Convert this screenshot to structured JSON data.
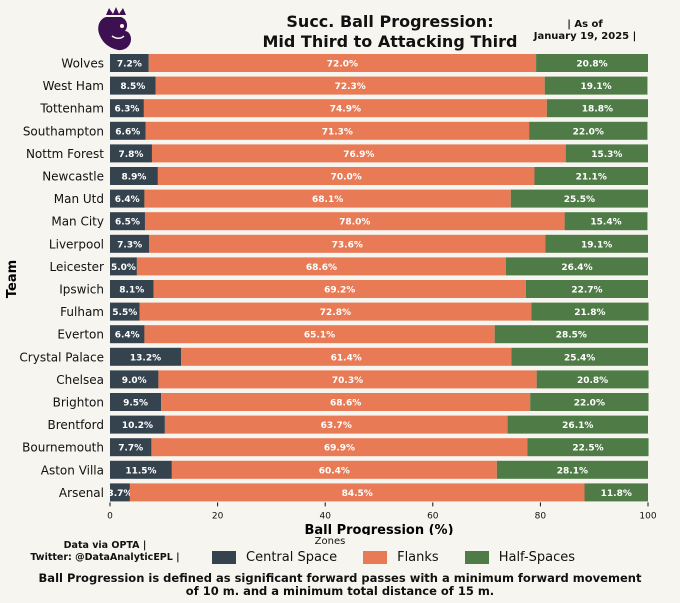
{
  "header": {
    "title_line1": "Succ. Ball Progression:",
    "title_line2": "Mid Third to Attacking Third",
    "asof_line1": "| As of",
    "asof_line2": "January 19, 2025 |"
  },
  "footer": {
    "source_line1": "Data via OPTA |",
    "source_line2": "Twitter: @DataAnalyticEPL |",
    "note_line1": "Ball Progression is defined as significant forward passes with a minimum forward movement",
    "note_line2": "of 10 m. and a minimum total distance of 15 m."
  },
  "legend": {
    "title": "Zones",
    "items": [
      "Central Space",
      "Flanks",
      "Half-Spaces"
    ]
  },
  "colors": {
    "central": "#35434f",
    "flanks": "#e87a55",
    "half": "#4f7b46",
    "background": "#f7f5ef",
    "logo": "#3d1052"
  },
  "chart_data": {
    "type": "bar",
    "orientation": "horizontal",
    "stacked": true,
    "xlabel": "Ball Progression (%)",
    "ylabel": "Team",
    "xlim": [
      0,
      100
    ],
    "xticks": [
      0,
      20,
      40,
      60,
      80,
      100
    ],
    "categories": [
      "Wolves",
      "West Ham",
      "Tottenham",
      "Southampton",
      "Nottm Forest",
      "Newcastle",
      "Man Utd",
      "Man City",
      "Liverpool",
      "Leicester",
      "Ipswich",
      "Fulham",
      "Everton",
      "Crystal Palace",
      "Chelsea",
      "Brighton",
      "Brentford",
      "Bournemouth",
      "Aston Villa",
      "Arsenal"
    ],
    "series": [
      {
        "name": "Central Space",
        "values": [
          7.2,
          8.5,
          6.3,
          6.6,
          7.8,
          8.9,
          6.4,
          6.5,
          7.3,
          5.0,
          8.1,
          5.5,
          6.4,
          13.2,
          9.0,
          9.5,
          10.2,
          7.7,
          11.5,
          3.7
        ],
        "labels": [
          "7.2%",
          "8.5%",
          "6.3%",
          "6.6%",
          "7.8%",
          "8.9%",
          "6.4%",
          "6.5%",
          "7.3%",
          "5.0%",
          "8.1%",
          "5.5%",
          "6.4%",
          "13.2%",
          "9.0%",
          "9.5%",
          "10.2%",
          "7.7%",
          "11.5%",
          "3.7%"
        ]
      },
      {
        "name": "Flanks",
        "values": [
          72.0,
          72.3,
          74.9,
          71.3,
          76.9,
          70.0,
          68.1,
          78.0,
          73.6,
          68.6,
          69.2,
          72.8,
          65.1,
          61.4,
          70.3,
          68.6,
          63.7,
          69.9,
          60.4,
          84.5
        ],
        "labels": [
          "72.0%",
          "72.3%",
          "74.9%",
          "71.3%",
          "76.9%",
          "70.0%",
          "68.1%",
          "78.0%",
          "73.6%",
          "68.6%",
          "69.2%",
          "72.8%",
          "65.1%",
          "61.4%",
          "70.3%",
          "68.6%",
          "63.7%",
          "69.9%",
          "60.4%",
          "84.5%"
        ]
      },
      {
        "name": "Half-Spaces",
        "values": [
          20.8,
          19.1,
          18.8,
          22.0,
          15.3,
          21.1,
          25.5,
          15.4,
          19.1,
          26.4,
          22.7,
          21.8,
          28.5,
          25.4,
          20.8,
          22.0,
          26.1,
          22.5,
          28.1,
          11.8
        ],
        "labels": [
          "20.8%",
          "19.1%",
          "18.8%",
          "22.0%",
          "15.3%",
          "21.1%",
          "25.5%",
          "15.4%",
          "19.1%",
          "26.4%",
          "22.7%",
          "21.8%",
          "28.5%",
          "25.4%",
          "20.8%",
          "22.0%",
          "26.1%",
          "22.5%",
          "28.1%",
          "11.8%"
        ]
      }
    ]
  }
}
